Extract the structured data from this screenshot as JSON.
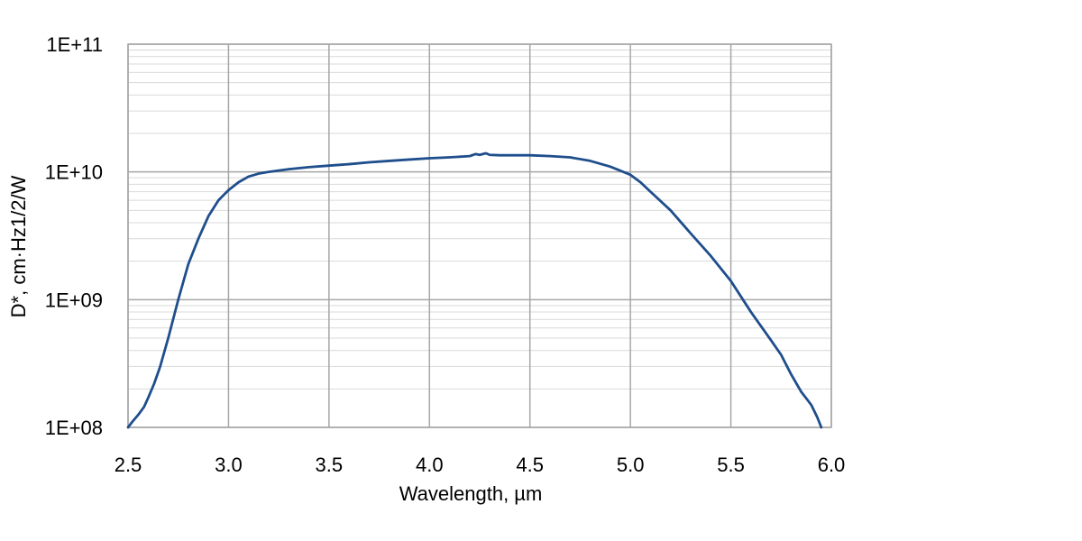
{
  "chart_data": {
    "type": "line",
    "title": "",
    "xlabel": "Wavelength, µm",
    "ylabel": "D*, cm·Hz1/2/W",
    "xlim": [
      2.5,
      6.0
    ],
    "ylim": [
      100000000.0,
      100000000000.0
    ],
    "yscale": "log",
    "grid": true,
    "x_ticks": [
      2.5,
      3.0,
      3.5,
      4.0,
      4.5,
      5.0,
      5.5,
      6.0
    ],
    "x_tick_labels": [
      "2.5",
      "3.0",
      "3.5",
      "4.0",
      "4.5",
      "5.0",
      "5.5",
      "6.0"
    ],
    "y_ticks": [
      100000000.0,
      1000000000.0,
      10000000000.0,
      100000000000.0
    ],
    "y_tick_labels": [
      "1E+08",
      "1E+09",
      "1E+10",
      "1E+11"
    ],
    "line_color": "#1f4e8c",
    "grid_major_color": "#a6a6a6",
    "grid_minor_color": "#d9d9d9",
    "series": [
      {
        "x": [
          2.5,
          2.52,
          2.55,
          2.58,
          2.6,
          2.63,
          2.66,
          2.7,
          2.75,
          2.8,
          2.85,
          2.9,
          2.95,
          3.0,
          3.05,
          3.1,
          3.15,
          3.2,
          3.3,
          3.4,
          3.5,
          3.6,
          3.7,
          3.8,
          3.9,
          4.0,
          4.1,
          4.2,
          4.23,
          4.25,
          4.28,
          4.3,
          4.35,
          4.4,
          4.5,
          4.6,
          4.7,
          4.8,
          4.9,
          5.0,
          5.05,
          5.1,
          5.2,
          5.3,
          5.4,
          5.5,
          5.6,
          5.7,
          5.75,
          5.8,
          5.85,
          5.88,
          5.9,
          5.93,
          5.95
        ],
        "y": [
          100000000.0,
          110000000.0,
          125000000.0,
          145000000.0,
          170000000.0,
          220000000.0,
          300000000.0,
          500000000.0,
          1000000000.0,
          1900000000.0,
          3000000000.0,
          4500000000.0,
          6000000000.0,
          7200000000.0,
          8300000000.0,
          9200000000.0,
          9700000000.0,
          10000000000.0,
          10500000000.0,
          10900000000.0,
          11200000000.0,
          11500000000.0,
          11900000000.0,
          12200000000.0,
          12500000000.0,
          12800000000.0,
          13000000000.0,
          13300000000.0,
          13800000000.0,
          13600000000.0,
          14000000000.0,
          13600000000.0,
          13500000000.0,
          13500000000.0,
          13500000000.0,
          13300000000.0,
          13000000000.0,
          12200000000.0,
          11000000000.0,
          9500000000.0,
          8300000000.0,
          7000000000.0,
          5000000000.0,
          3300000000.0,
          2200000000.0,
          1400000000.0,
          800000000.0,
          480000000.0,
          370000000.0,
          260000000.0,
          190000000.0,
          165000000.0,
          150000000.0,
          120000000.0,
          100000000.0
        ]
      }
    ]
  }
}
